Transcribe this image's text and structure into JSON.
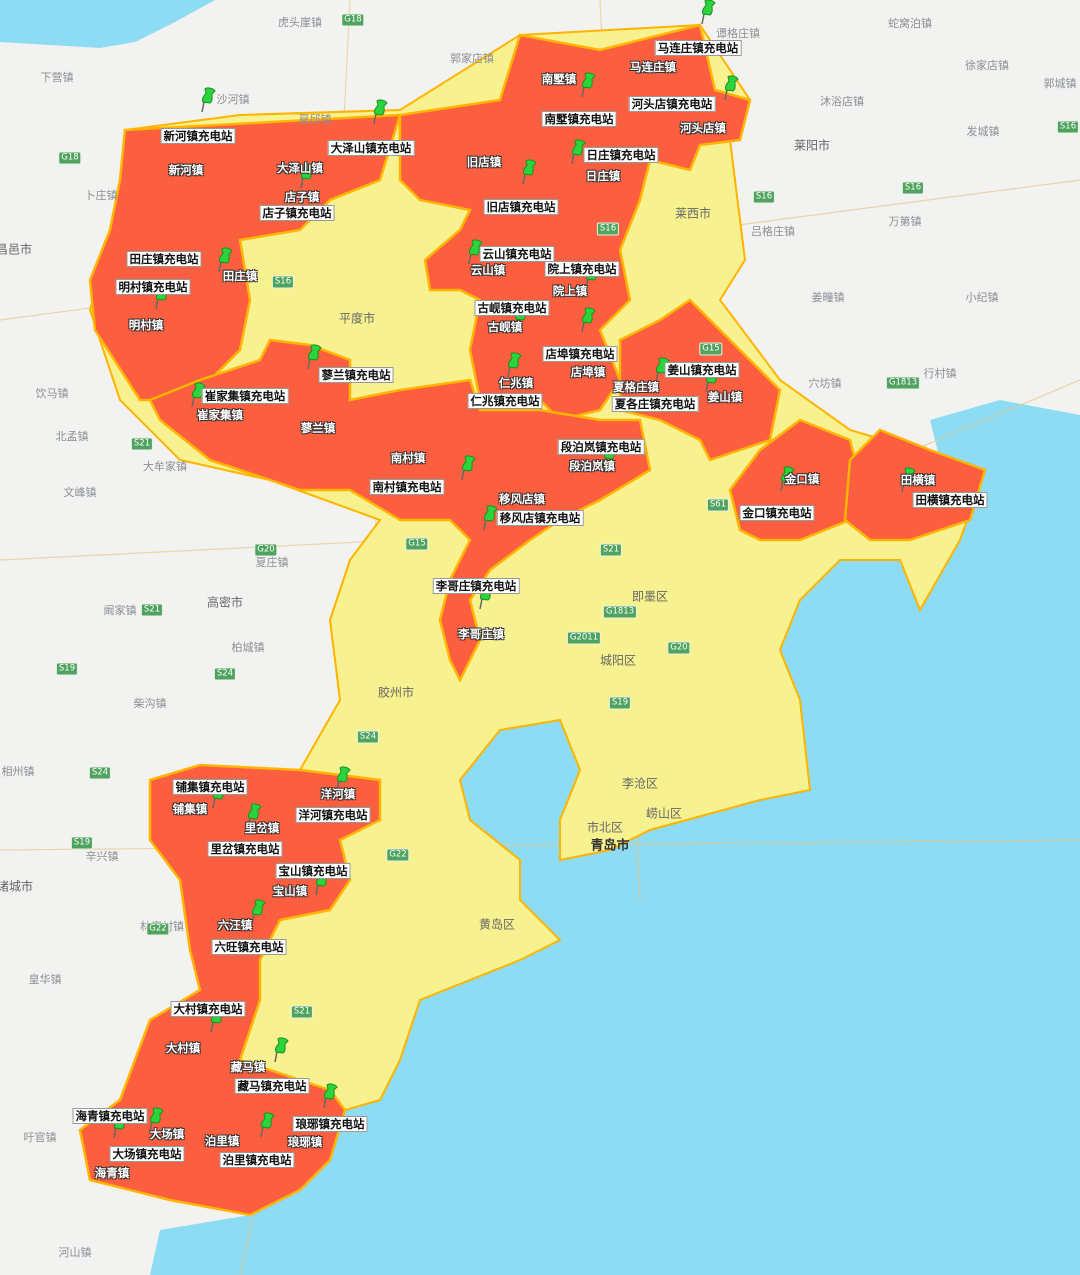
{
  "colors": {
    "sea": "#8ddcf3",
    "land": "#f2f2f0",
    "county": "#f7f18f",
    "highlight": "#fc5f3f",
    "border": "#ffb400",
    "pin": "#2bd43a"
  },
  "stations": [
    "新河镇充电站",
    "大泽山镇充电站",
    "店子镇充电站",
    "旧店镇充电站",
    "南墅镇充电站",
    "马连庄镇充电站",
    "河头店镇充电站",
    "日庄镇充电站",
    "云山镇充电站",
    "院上镇充电站",
    "古岘镇充电站",
    "店埠镇充电站",
    "姜山镇充电站",
    "夏各庄镇充电站",
    "仁兆镇充电站",
    "蓼兰镇充电站",
    "崔家集镇充电站",
    "田庄镇充电站",
    "明村镇充电站",
    "南村镇充电站",
    "段泊岚镇充电站",
    "移风店镇充电站",
    "金口镇充电站",
    "田横镇充电站",
    "李哥庄镇充电站",
    "铺集镇充电站",
    "洋河镇充电站",
    "里岔镇充电站",
    "宝山镇充电站",
    "六旺镇充电站",
    "大村镇充电站",
    "藏马镇充电站",
    "海青镇充电站",
    "大场镇充电站",
    "泊里镇充电站",
    "琅琊镇充电站"
  ],
  "towns": [
    "新河镇",
    "大泽山镇",
    "店子镇",
    "旧店镇",
    "南墅镇",
    "马连庄镇",
    "河头店镇",
    "日庄镇",
    "云山镇",
    "院上镇",
    "古岘镇",
    "店埠镇",
    "姜山镇",
    "夏格庄镇",
    "仁兆镇",
    "蓼兰镇",
    "崔家集镇",
    "田庄镇",
    "明村镇",
    "南村镇",
    "段泊岚镇",
    "移风店镇",
    "金口镇",
    "田横镇",
    "李哥庄镇",
    "铺集镇",
    "洋河镇",
    "里岔镇",
    "宝山镇",
    "六汪镇",
    "大村镇",
    "藏马镇",
    "海青镇",
    "大场镇",
    "泊里镇",
    "琅琊镇"
  ],
  "places": [
    "虎头崖镇",
    "郭家店镇",
    "谭格庄镇",
    "蛇窝泊镇",
    "徐家店镇",
    "郭城镇",
    "沙河镇",
    "下营镇",
    "夏邱镇",
    "沐浴店镇",
    "莱阳市",
    "发城镇",
    "卜庄镇",
    "昌邑市",
    "吕格庄镇",
    "万第镇",
    "莱西市",
    "平度市",
    "姜疃镇",
    "小纪镇",
    "穴坊镇",
    "行村镇",
    "饮马镇",
    "北孟镇",
    "大牟家镇",
    "文峰镇",
    "夏庄镇",
    "阚家镇",
    "高密市",
    "柏城镇",
    "柴沟镇",
    "胶州市",
    "即墨区",
    "城阳区",
    "相州镇",
    "辛兴镇",
    "诸城市",
    "林家村镇",
    "皇华镇",
    "李沧区",
    "崂山区",
    "市北区",
    "青岛市",
    "黄岛区",
    "吁官镇",
    "河山镇"
  ],
  "highways": [
    "G18",
    "G18",
    "S16",
    "S16",
    "S16",
    "S16",
    "S16",
    "S21",
    "G20",
    "G15",
    "S21",
    "S24",
    "S24",
    "S24",
    "S21",
    "G1813",
    "G1813",
    "G2011",
    "G20",
    "S19",
    "S61",
    "S19",
    "G22",
    "G22",
    "S21",
    "G15",
    "S19"
  ],
  "pin_icon": "green-pushpin"
}
